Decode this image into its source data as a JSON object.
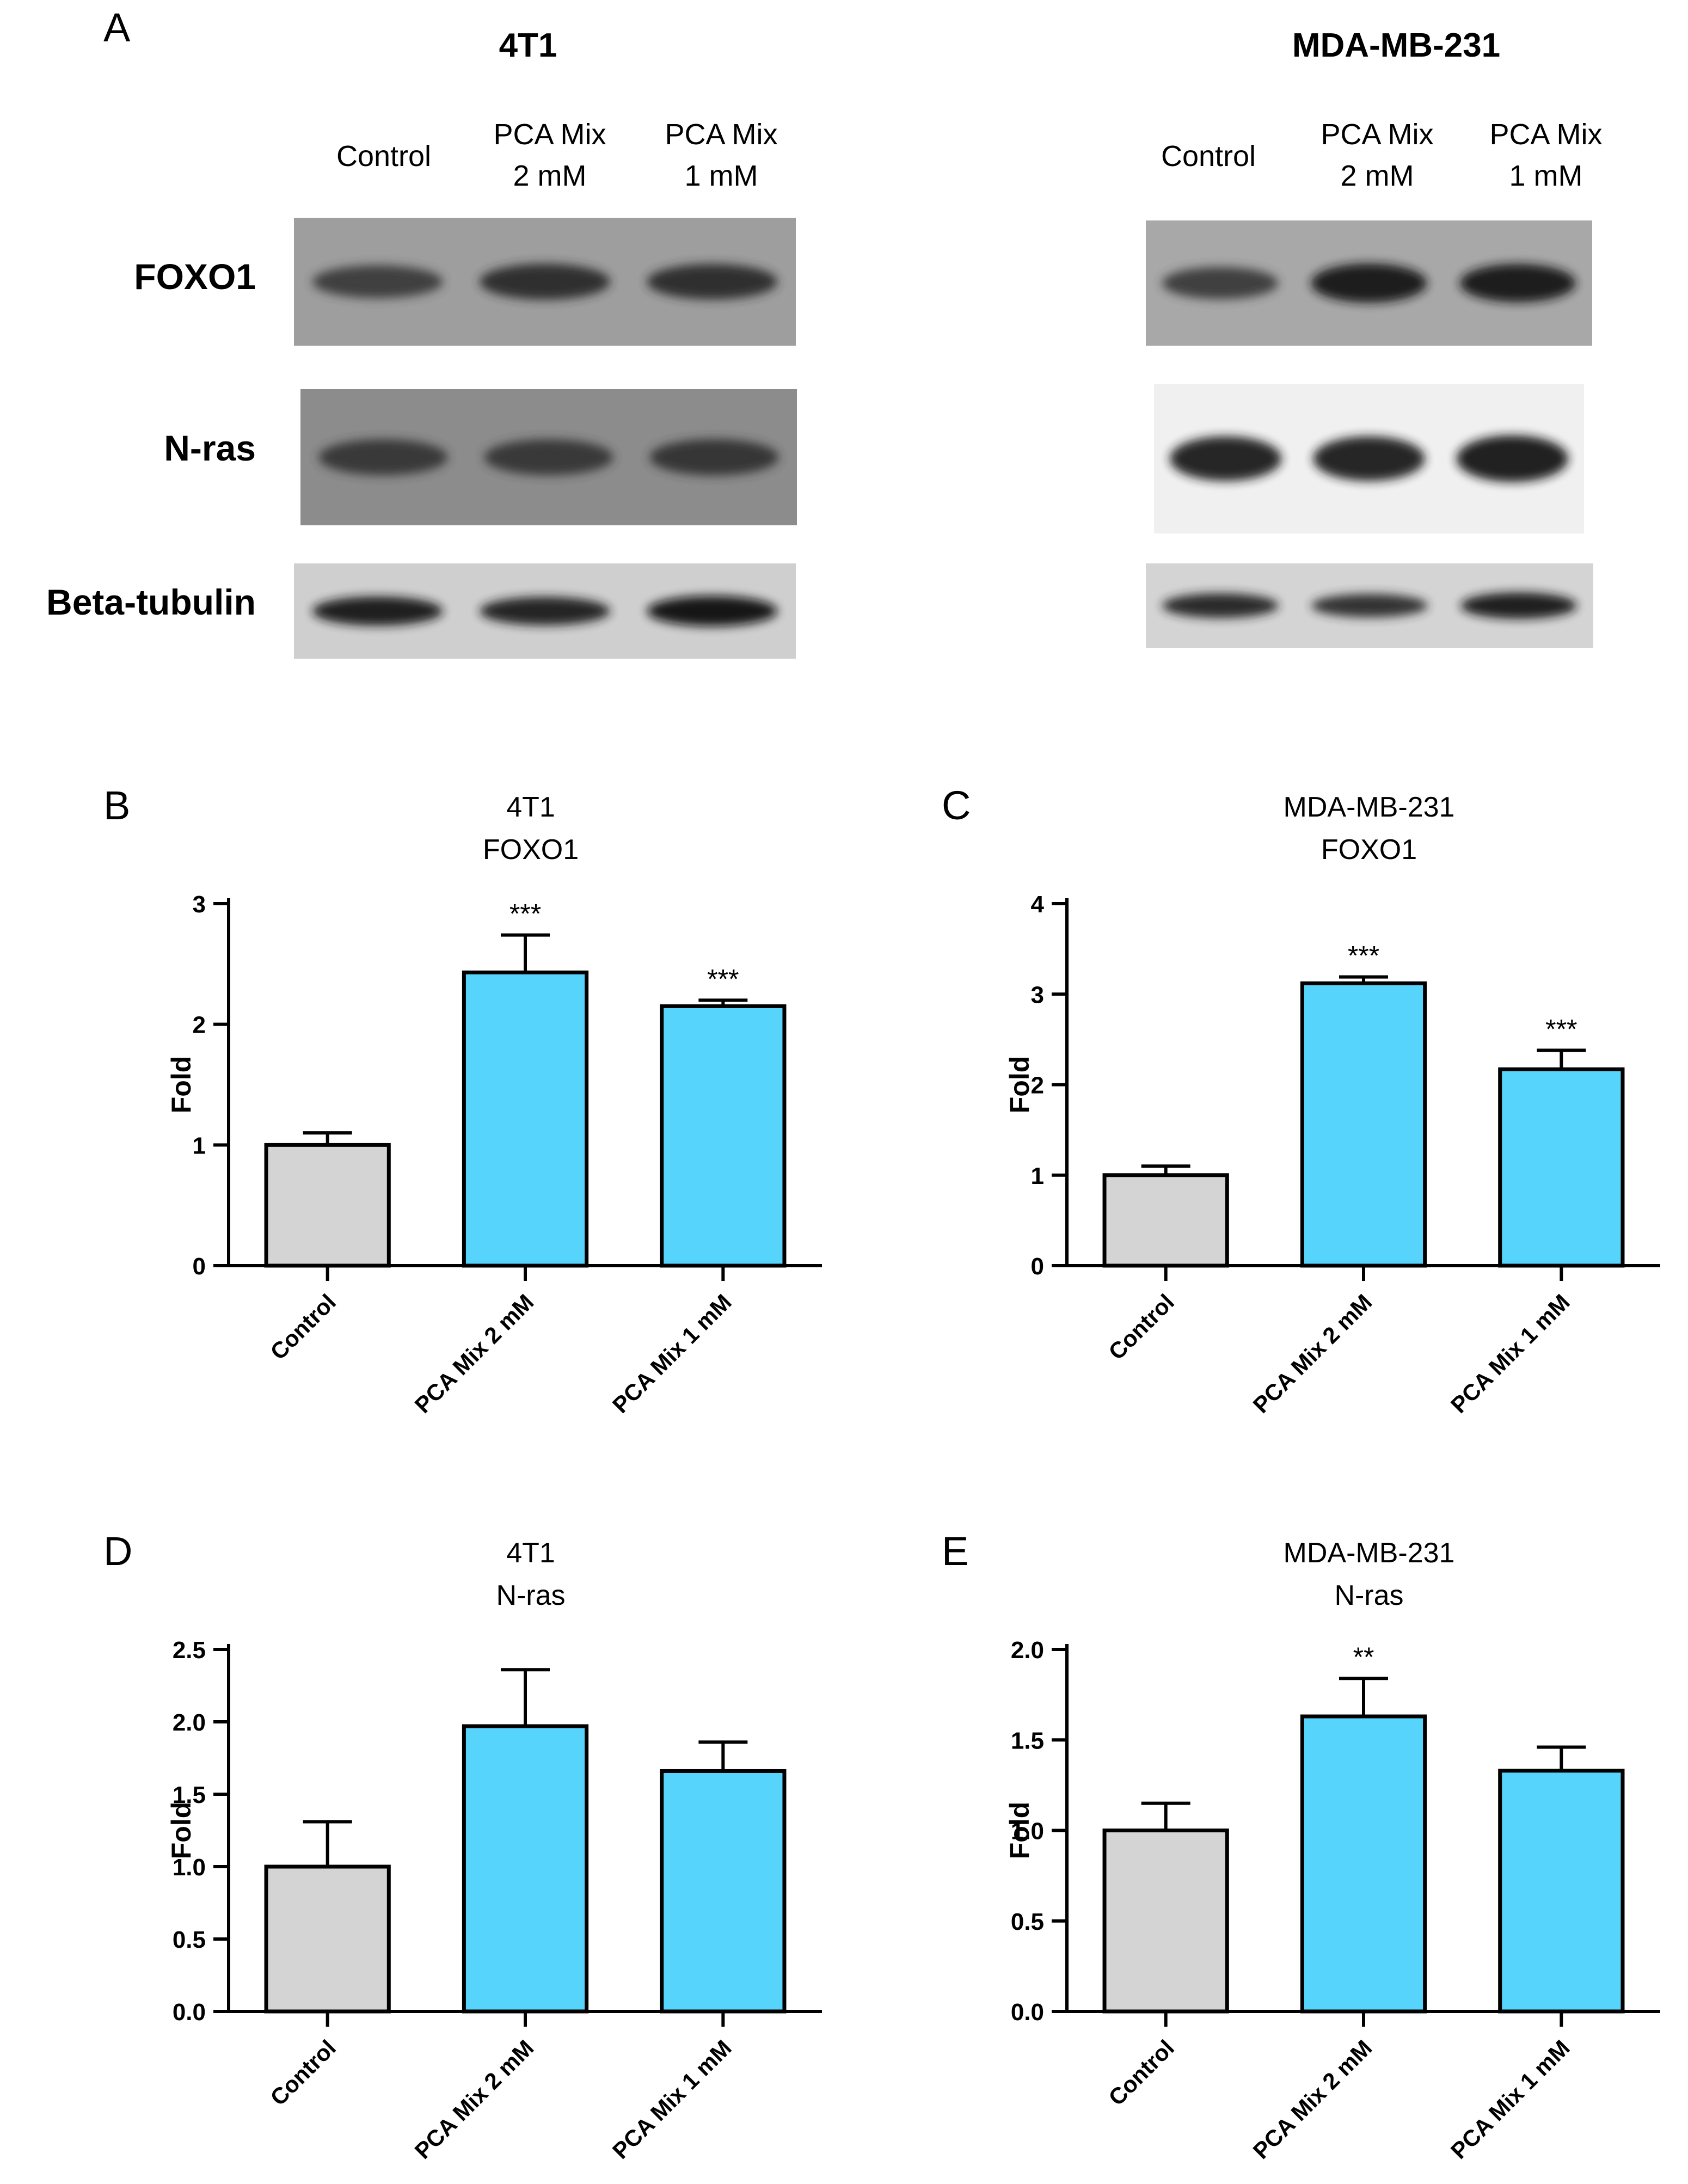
{
  "panel_a": {
    "letter": "A",
    "groups": [
      {
        "heading": "4T1",
        "lanes": [
          "Control",
          "PCA Mix\n2 mM",
          "PCA Mix\n1 mM"
        ],
        "rows": [
          {
            "label": "FOXO1",
            "bg": "#9e9e9e",
            "intensity": [
              0.55,
              0.72,
              0.7
            ]
          },
          {
            "label": "N-ras",
            "bg": "#8c8c8c",
            "intensity": [
              0.6,
              0.6,
              0.62
            ]
          },
          {
            "label": "Beta-tubulin",
            "bg": "#cfcfcf",
            "intensity": [
              0.9,
              0.85,
              1.0
            ]
          }
        ]
      },
      {
        "heading": "MDA-MB-231",
        "lanes": [
          "Control",
          "PCA Mix\n2 mM",
          "PCA Mix\n1 mM"
        ],
        "rows": [
          {
            "label": "FOXO1",
            "bg": "#a8a8a8",
            "intensity": [
              0.55,
              0.95,
              0.9
            ]
          },
          {
            "label": "N-ras",
            "bg": "#f0f0f0",
            "intensity": [
              0.85,
              0.85,
              0.95
            ]
          },
          {
            "label": "Beta-tubulin",
            "bg": "#d4d4d4",
            "intensity": [
              0.8,
              0.7,
              0.95
            ]
          }
        ]
      }
    ]
  },
  "chart_data": [
    {
      "letter": "B",
      "type": "bar",
      "title": "4T1",
      "subtitle": "FOXO1",
      "ylabel": "Fold",
      "ylim": [
        0,
        3
      ],
      "yticks": [
        "0",
        "1",
        "2",
        "3"
      ],
      "ytick_values": [
        0,
        1,
        2,
        3
      ],
      "categories": [
        "Control",
        "PCA Mix 2 mM",
        "PCA Mix 1 mM"
      ],
      "values": [
        1.0,
        2.43,
        2.15
      ],
      "errors": [
        0.1,
        0.31,
        0.05
      ],
      "significance": [
        "",
        "***",
        "***"
      ],
      "colors": [
        "#d4d4d4",
        "#57d4fc",
        "#57d4fc"
      ]
    },
    {
      "letter": "C",
      "type": "bar",
      "title": "MDA-MB-231",
      "subtitle": "FOXO1",
      "ylabel": "Fold",
      "ylim": [
        0,
        4
      ],
      "yticks": [
        "0",
        "1",
        "2",
        "3",
        "4"
      ],
      "ytick_values": [
        0,
        1,
        2,
        3,
        4
      ],
      "categories": [
        "Control",
        "PCA Mix 2 mM",
        "PCA Mix 1 mM"
      ],
      "values": [
        1.0,
        3.12,
        2.17
      ],
      "errors": [
        0.1,
        0.07,
        0.21
      ],
      "significance": [
        "",
        "***",
        "***"
      ],
      "colors": [
        "#d4d4d4",
        "#57d4fc",
        "#57d4fc"
      ]
    },
    {
      "letter": "D",
      "type": "bar",
      "title": "4T1",
      "subtitle": "N-ras",
      "ylabel": "Fold",
      "ylim": [
        0,
        2.5
      ],
      "yticks": [
        "0.0",
        "0.5",
        "1.0",
        "1.5",
        "2.0",
        "2.5"
      ],
      "ytick_values": [
        0,
        0.5,
        1,
        1.5,
        2,
        2.5
      ],
      "categories": [
        "Control",
        "PCA Mix 2 mM",
        "PCA Mix 1 mM"
      ],
      "values": [
        1.0,
        1.97,
        1.66
      ],
      "errors": [
        0.31,
        0.39,
        0.2
      ],
      "significance": [
        "",
        "",
        ""
      ],
      "colors": [
        "#d4d4d4",
        "#57d4fc",
        "#57d4fc"
      ]
    },
    {
      "letter": "E",
      "type": "bar",
      "title": "MDA-MB-231",
      "subtitle": "N-ras",
      "ylabel": "Fold",
      "ylim": [
        0,
        2
      ],
      "yticks": [
        "0.0",
        "0.5",
        "1.0",
        "1.5",
        "2.0"
      ],
      "ytick_values": [
        0,
        0.5,
        1,
        1.5,
        2
      ],
      "categories": [
        "Control",
        "PCA Mix 2 mM",
        "PCA Mix 1 mM"
      ],
      "values": [
        1.0,
        1.63,
        1.33
      ],
      "errors": [
        0.15,
        0.21,
        0.13
      ],
      "significance": [
        "",
        "**",
        ""
      ],
      "colors": [
        "#d4d4d4",
        "#57d4fc",
        "#57d4fc"
      ]
    }
  ]
}
